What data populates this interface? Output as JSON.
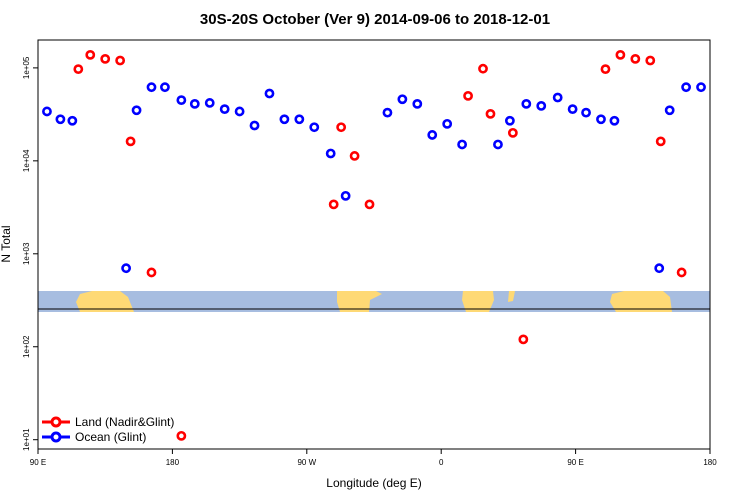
{
  "chart_data": {
    "type": "scatter",
    "title": "30S-20S October (Ver 9)   2014-09-06 to 2018-12-01",
    "xlabel": "Longitude (deg E)",
    "ylabel": "N Total",
    "x_ticks": [
      {
        "value": 90,
        "label": "90 E"
      },
      {
        "value": 180,
        "label": "180"
      },
      {
        "value": 270,
        "label": "90 W"
      },
      {
        "value": 360,
        "label": "0"
      },
      {
        "value": 450,
        "label": "90 E"
      },
      {
        "value": 540,
        "label": "180"
      }
    ],
    "y_ticks": [
      {
        "value": 10,
        "label": "1e+01"
      },
      {
        "value": 100,
        "label": "1e+02"
      },
      {
        "value": 1000,
        "label": "1e+03"
      },
      {
        "value": 10000,
        "label": "1e+04"
      },
      {
        "value": 100000,
        "label": "1e+05"
      }
    ],
    "xlim": [
      90,
      540
    ],
    "ylim_log10": [
      0.9,
      5.3
    ],
    "y_scale": "log",
    "legend_position": "bottom-left",
    "series": [
      {
        "name": "Land (Nadir&Glint)",
        "color": "#ff0000",
        "points": [
          {
            "x": 117,
            "y": 97000
          },
          {
            "x": 125,
            "y": 138000
          },
          {
            "x": 135,
            "y": 125000
          },
          {
            "x": 145,
            "y": 120000
          },
          {
            "x": 152,
            "y": 16200
          },
          {
            "x": 166,
            "y": 630
          },
          {
            "x": 186,
            "y": 11
          },
          {
            "x": 288,
            "y": 3400
          },
          {
            "x": 293,
            "y": 23000
          },
          {
            "x": 302,
            "y": 11300
          },
          {
            "x": 312,
            "y": 3400
          },
          {
            "x": 378,
            "y": 50000
          },
          {
            "x": 388,
            "y": 98000
          },
          {
            "x": 393,
            "y": 32000
          },
          {
            "x": 408,
            "y": 20000
          },
          {
            "x": 415,
            "y": 120
          },
          {
            "x": 470,
            "y": 97000
          },
          {
            "x": 480,
            "y": 138000
          },
          {
            "x": 490,
            "y": 125000
          },
          {
            "x": 500,
            "y": 120000
          },
          {
            "x": 507,
            "y": 16200
          },
          {
            "x": 521,
            "y": 630
          }
        ]
      },
      {
        "name": "Ocean (Glint)",
        "color": "#0000ff",
        "points": [
          {
            "x": 96,
            "y": 34000
          },
          {
            "x": 105,
            "y": 28000
          },
          {
            "x": 113,
            "y": 27000
          },
          {
            "x": 149,
            "y": 700
          },
          {
            "x": 156,
            "y": 35000
          },
          {
            "x": 166,
            "y": 62000
          },
          {
            "x": 175,
            "y": 62000
          },
          {
            "x": 186,
            "y": 45000
          },
          {
            "x": 195,
            "y": 41000
          },
          {
            "x": 205,
            "y": 42000
          },
          {
            "x": 215,
            "y": 36000
          },
          {
            "x": 225,
            "y": 34000
          },
          {
            "x": 235,
            "y": 24000
          },
          {
            "x": 245,
            "y": 53000
          },
          {
            "x": 255,
            "y": 28000
          },
          {
            "x": 265,
            "y": 28000
          },
          {
            "x": 275,
            "y": 23000
          },
          {
            "x": 286,
            "y": 12000
          },
          {
            "x": 296,
            "y": 4200
          },
          {
            "x": 324,
            "y": 33000
          },
          {
            "x": 334,
            "y": 46000
          },
          {
            "x": 344,
            "y": 41000
          },
          {
            "x": 354,
            "y": 19000
          },
          {
            "x": 364,
            "y": 25000
          },
          {
            "x": 374,
            "y": 15000
          },
          {
            "x": 398,
            "y": 15000
          },
          {
            "x": 406,
            "y": 27000
          },
          {
            "x": 417,
            "y": 41000
          },
          {
            "x": 427,
            "y": 39000
          },
          {
            "x": 438,
            "y": 48000
          },
          {
            "x": 448,
            "y": 36000
          },
          {
            "x": 457,
            "y": 33000
          },
          {
            "x": 467,
            "y": 28000
          },
          {
            "x": 476,
            "y": 27000
          },
          {
            "x": 506,
            "y": 700
          },
          {
            "x": 513,
            "y": 35000
          },
          {
            "x": 524,
            "y": 62000
          },
          {
            "x": 534,
            "y": 62000
          }
        ]
      }
    ]
  }
}
